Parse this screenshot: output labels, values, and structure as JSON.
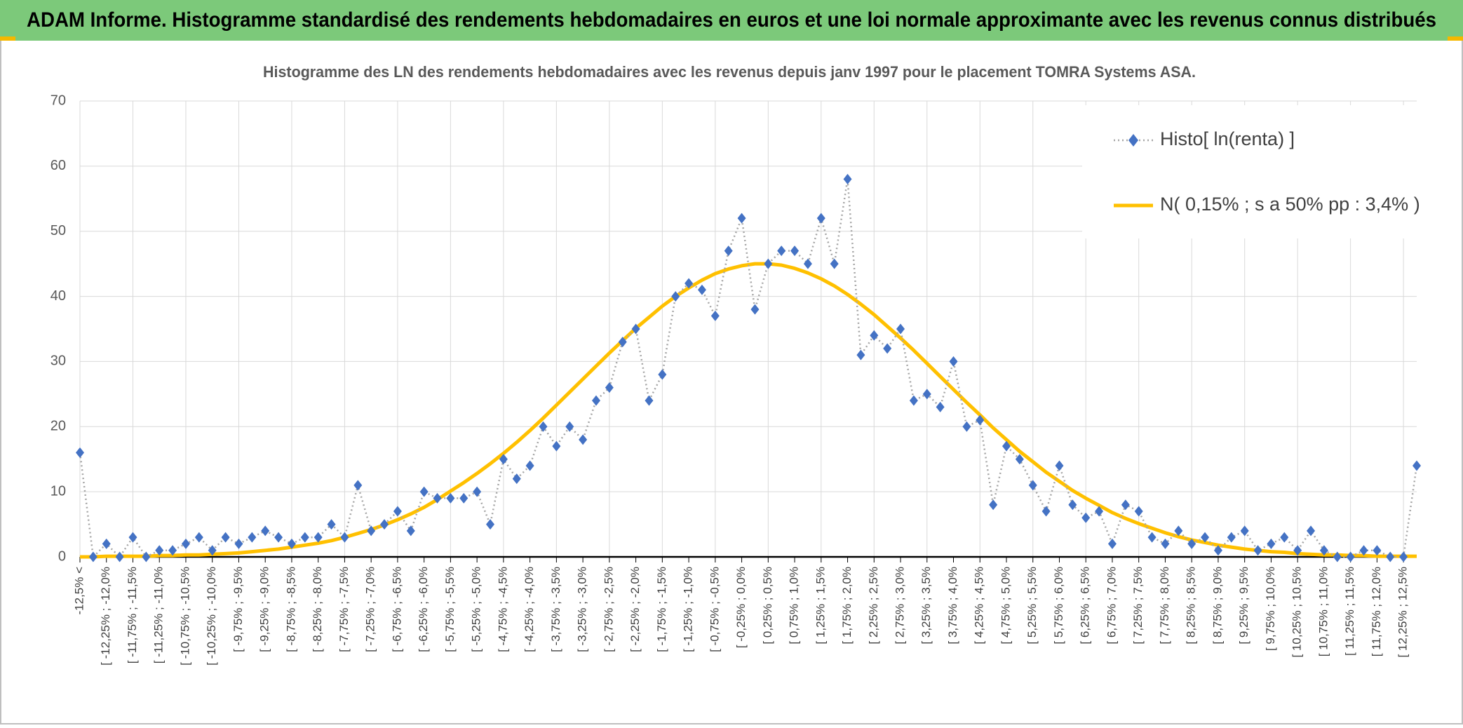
{
  "header": {
    "title": "ADAM Informe. Histogramme standardisé des rendements hebdomadaires en euros et une loi normale approximante avec les revenus connus distribués"
  },
  "chart_data": {
    "type": "line",
    "title": "Histogramme des LN des rendements hebdomadaires avec les revenus depuis janv 1997 pour le placement TOMRA Systems ASA.",
    "categories": [
      "-12,5% <",
      null,
      "[ -12,25% ; -12,0%",
      null,
      "[ -11,75% ; -11,5%",
      null,
      "[ -11,25% ; -11,0%",
      null,
      "[ -10,75% ; -10,5%",
      null,
      "[ -10,25% ; -10,0%",
      null,
      "[ -9,75% ; -9,5%",
      null,
      "[ -9,25% ; -9,0%",
      null,
      "[ -8,75% ; -8,5%",
      null,
      "[ -8,25% ; -8,0%",
      null,
      "[ -7,75% ; -7,5%",
      null,
      "[ -7,25% ; -7,0%",
      null,
      "[ -6,75% ; -6,5%",
      null,
      "[ -6,25% ; -6,0%",
      null,
      "[ -5,75% ; -5,5%",
      null,
      "[ -5,25% ; -5,0%",
      null,
      "[ -4,75% ; -4,5%",
      null,
      "[ -4,25% ; -4,0%",
      null,
      "[ -3,75% ; -3,5%",
      null,
      "[ -3,25% ; -3,0%",
      null,
      "[ -2,75% ; -2,5%",
      null,
      "[ -2,25% ; -2,0%",
      null,
      "[ -1,75% ; -1,5%",
      null,
      "[ -1,25% ; -1,0%",
      null,
      "[ -0,75% ; -0,5%",
      null,
      "[ -0,25% ; 0,0%",
      null,
      "[ 0,25% ; 0,5%",
      null,
      "[ 0,75% ; 1,0%",
      null,
      "[ 1,25% ; 1,5%",
      null,
      "[ 1,75% ; 2,0%",
      null,
      "[ 2,25% ; 2,5%",
      null,
      "[ 2,75% ; 3,0%",
      null,
      "[ 3,25% ; 3,5%",
      null,
      "[ 3,75% ; 4,0%",
      null,
      "[ 4,25% ; 4,5%",
      null,
      "[ 4,75% ; 5,0%",
      null,
      "[ 5,25% ; 5,5%",
      null,
      "[ 5,75% ; 6,0%",
      null,
      "[ 6,25% ; 6,5%",
      null,
      "[ 6,75% ; 7,0%",
      null,
      "[ 7,25% ; 7,5%",
      null,
      "[ 7,75% ; 8,0%",
      null,
      "[ 8,25% ; 8,5%",
      null,
      "[ 8,75% ; 9,0%",
      null,
      "[ 9,25% ; 9,5%",
      null,
      "[ 9,75% ; 10,0%",
      null,
      "[ 10,25% ; 10,5%",
      null,
      "[ 10,75% ; 11,0%",
      null,
      "[ 11,25% ; 11,5%",
      null,
      "[ 11,75% ; 12,0%",
      null,
      "[ 12,25% ; 12,5%",
      null
    ],
    "series": [
      {
        "name": "Histo[ ln(renta) ]",
        "color": "#4472c4",
        "line_color": "#a6a6a6",
        "line_style": "dotted",
        "marker": "diamond",
        "values": [
          16,
          0,
          2,
          0,
          3,
          0,
          1,
          1,
          2,
          3,
          1,
          3,
          2,
          3,
          4,
          3,
          2,
          3,
          3,
          5,
          3,
          11,
          4,
          5,
          7,
          4,
          10,
          9,
          9,
          9,
          10,
          5,
          15,
          12,
          14,
          20,
          17,
          20,
          18,
          24,
          26,
          33,
          35,
          24,
          28,
          40,
          42,
          41,
          37,
          47,
          52,
          38,
          45,
          47,
          47,
          45,
          52,
          45,
          58,
          31,
          34,
          32,
          35,
          24,
          25,
          23,
          30,
          20,
          21,
          8,
          17,
          15,
          11,
          7,
          14,
          8,
          6,
          7,
          2,
          8,
          7,
          3,
          2,
          4,
          2,
          3,
          1,
          3,
          4,
          1,
          2,
          3,
          1,
          4,
          1,
          0,
          0,
          1,
          1,
          0,
          0,
          14
        ]
      },
      {
        "name": "N( 0,15% ; s a 50% pp : 3,4% )",
        "color": "#ffc000",
        "line_style": "solid",
        "marker": "none",
        "values": [
          0.0,
          0.0,
          0.1,
          0.1,
          0.1,
          0.1,
          0.2,
          0.2,
          0.3,
          0.3,
          0.4,
          0.5,
          0.6,
          0.8,
          1.0,
          1.2,
          1.5,
          1.8,
          2.1,
          2.5,
          3.0,
          3.6,
          4.2,
          4.9,
          5.7,
          6.6,
          7.6,
          8.8,
          10.1,
          11.4,
          12.8,
          14.3,
          15.9,
          17.6,
          19.4,
          21.3,
          23.3,
          25.3,
          27.3,
          29.3,
          31.3,
          33.2,
          35.1,
          36.8,
          38.5,
          40.0,
          41.3,
          42.5,
          43.5,
          44.2,
          44.7,
          45.0,
          45.0,
          44.8,
          44.3,
          43.6,
          42.7,
          41.6,
          40.3,
          38.8,
          37.2,
          35.4,
          33.6,
          31.7,
          29.7,
          27.7,
          25.7,
          23.7,
          21.8,
          19.8,
          18.0,
          16.2,
          14.6,
          13.0,
          11.6,
          10.2,
          9.0,
          7.9,
          6.8,
          5.9,
          5.1,
          4.4,
          3.7,
          3.1,
          2.6,
          2.2,
          1.8,
          1.5,
          1.2,
          1.0,
          0.8,
          0.7,
          0.5,
          0.4,
          0.3,
          0.3,
          0.2,
          0.2,
          0.1,
          0.1,
          0.1,
          0.1
        ]
      }
    ],
    "ylim": [
      0,
      70
    ],
    "yticks": [
      0,
      10,
      20,
      30,
      40,
      50,
      60,
      70
    ],
    "grid": true,
    "legend": "upper right"
  }
}
